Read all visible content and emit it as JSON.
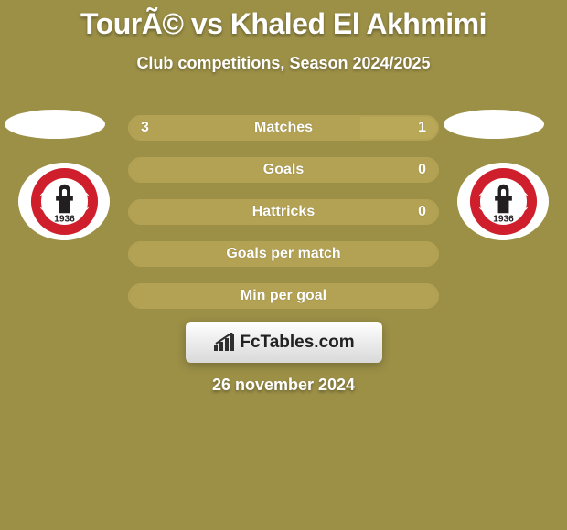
{
  "page": {
    "background_color": "#9c9047",
    "text_color": "#ffffff",
    "title": "TourÃ© vs Khaled El Akhmimi",
    "subtitle": "Club competitions, Season 2024/2025",
    "date_text": "26 november 2024",
    "title_fontsize": 32,
    "subtitle_fontsize": 18
  },
  "players": {
    "left": {
      "oval_color": "#ffffff"
    },
    "right": {
      "oval_color": "#ffffff"
    }
  },
  "crest": {
    "bg_color": "#ffffff",
    "ring_color": "#cf1f2d",
    "inner_color": "#231f20",
    "year_text": "1936"
  },
  "bars": {
    "border_color": "#b3a253",
    "left_fill_color": "#b3a253",
    "right_fill_color": "#b9a857",
    "label_color": "#ffffff",
    "value_color": "#ffffff",
    "rows": [
      {
        "label": "Matches",
        "left_text": "3",
        "right_text": "1",
        "left_pct": 75,
        "right_pct": 25
      },
      {
        "label": "Goals",
        "left_text": "",
        "right_text": "0",
        "left_pct": 100,
        "right_pct": 0
      },
      {
        "label": "Hattricks",
        "left_text": "",
        "right_text": "0",
        "left_pct": 100,
        "right_pct": 0
      },
      {
        "label": "Goals per match",
        "left_text": "",
        "right_text": "",
        "left_pct": 100,
        "right_pct": 0
      },
      {
        "label": "Min per goal",
        "left_text": "",
        "right_text": "",
        "left_pct": 100,
        "right_pct": 0
      }
    ]
  },
  "badge": {
    "text": "FcTables.com",
    "icon_color": "#2e2e2e"
  }
}
